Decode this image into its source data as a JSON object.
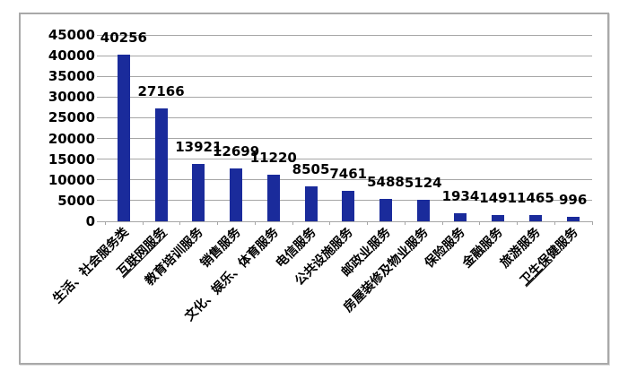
{
  "chart_data": {
    "type": "bar",
    "title": "",
    "xlabel": "",
    "ylabel": "",
    "legend": false,
    "grid": true,
    "x_label_rotation_deg": 45,
    "categories": [
      "生活、社会服务类",
      "互联网服务",
      "教育培训服务",
      "销售服务",
      "文化、娱乐、体育服务",
      "电信服务",
      "公共设施服务",
      "邮政业服务",
      "房屋装修及物业服务",
      "保险服务",
      "金融服务",
      "旅游服务",
      "卫生保健服务"
    ],
    "values": [
      40256,
      27166,
      13921,
      12699,
      11220,
      8505,
      7461,
      5488,
      5124,
      1934,
      1491,
      1465,
      996
    ],
    "data_labels": [
      "40256",
      "27166",
      "13921",
      "12699",
      "11220",
      "8505",
      "7461",
      "5488",
      "5124",
      "1934",
      "1491",
      "1465",
      "996"
    ],
    "underlined_categories": {
      "1": "互联网服务",
      "12": "卫生保"
    },
    "y_axis": {
      "min": 0,
      "max": 45000,
      "step": 5000,
      "tick_labels": [
        "0",
        "5000",
        "10000",
        "15000",
        "20000",
        "25000",
        "30000",
        "35000",
        "40000",
        "45000"
      ]
    },
    "colors": {
      "bar": "#1A2B9B",
      "gridline": "#A6A6A6",
      "axis": "#A6A6A6",
      "text": "#000000",
      "frame_border": "#A9A9A9",
      "background": "#FFFFFF"
    }
  }
}
